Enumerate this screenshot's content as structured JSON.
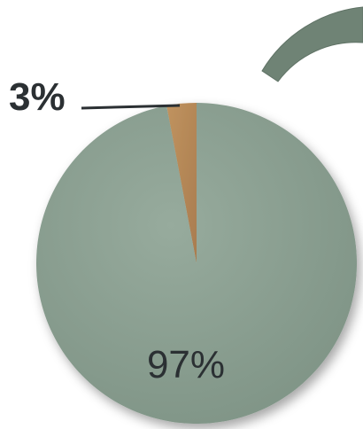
{
  "chart_data": {
    "type": "pie",
    "slices": [
      {
        "label": "3%",
        "value": 3
      },
      {
        "label": "97%",
        "value": 97
      }
    ]
  },
  "colors": {
    "small_slice": "#b5895a",
    "large_slice": "#8a9e90",
    "arc_decoration": "#6f8375",
    "leader_line": "#2b3033",
    "label_text": "#2b3033"
  }
}
